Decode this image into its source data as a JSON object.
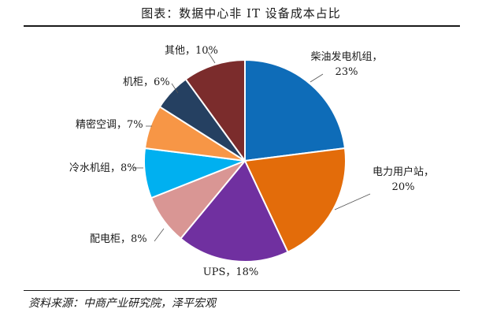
{
  "header": {
    "title": "图表：数据中心非 IT 设备成本占比"
  },
  "footer": {
    "source": "资料来源：中商产业研究院，泽平宏观"
  },
  "chart_data": {
    "type": "pie",
    "title": "图表：数据中心非 IT 设备成本占比",
    "start": "12 o'clock",
    "direction": "clockwise",
    "slices": [
      {
        "label": "柴油发电机组",
        "value": 23,
        "text": "23%",
        "color": "#0E6CB8"
      },
      {
        "label": "电力用户站",
        "value": 20,
        "text": "20%",
        "color": "#E36C0A"
      },
      {
        "label": "UPS",
        "value": 18,
        "text": "18%",
        "color": "#7030A0"
      },
      {
        "label": "配电柜",
        "value": 8,
        "text": "8%",
        "color": "#D99694"
      },
      {
        "label": "冷水机组",
        "value": 8,
        "text": "8%",
        "color": "#00B0F0"
      },
      {
        "label": "精密空调",
        "value": 7,
        "text": "7%",
        "color": "#F79646"
      },
      {
        "label": "机柜",
        "value": 6,
        "text": "6%",
        "color": "#254061"
      },
      {
        "label": "其他",
        "value": 10,
        "text": "10%",
        "color": "#7B2C2C"
      }
    ]
  }
}
